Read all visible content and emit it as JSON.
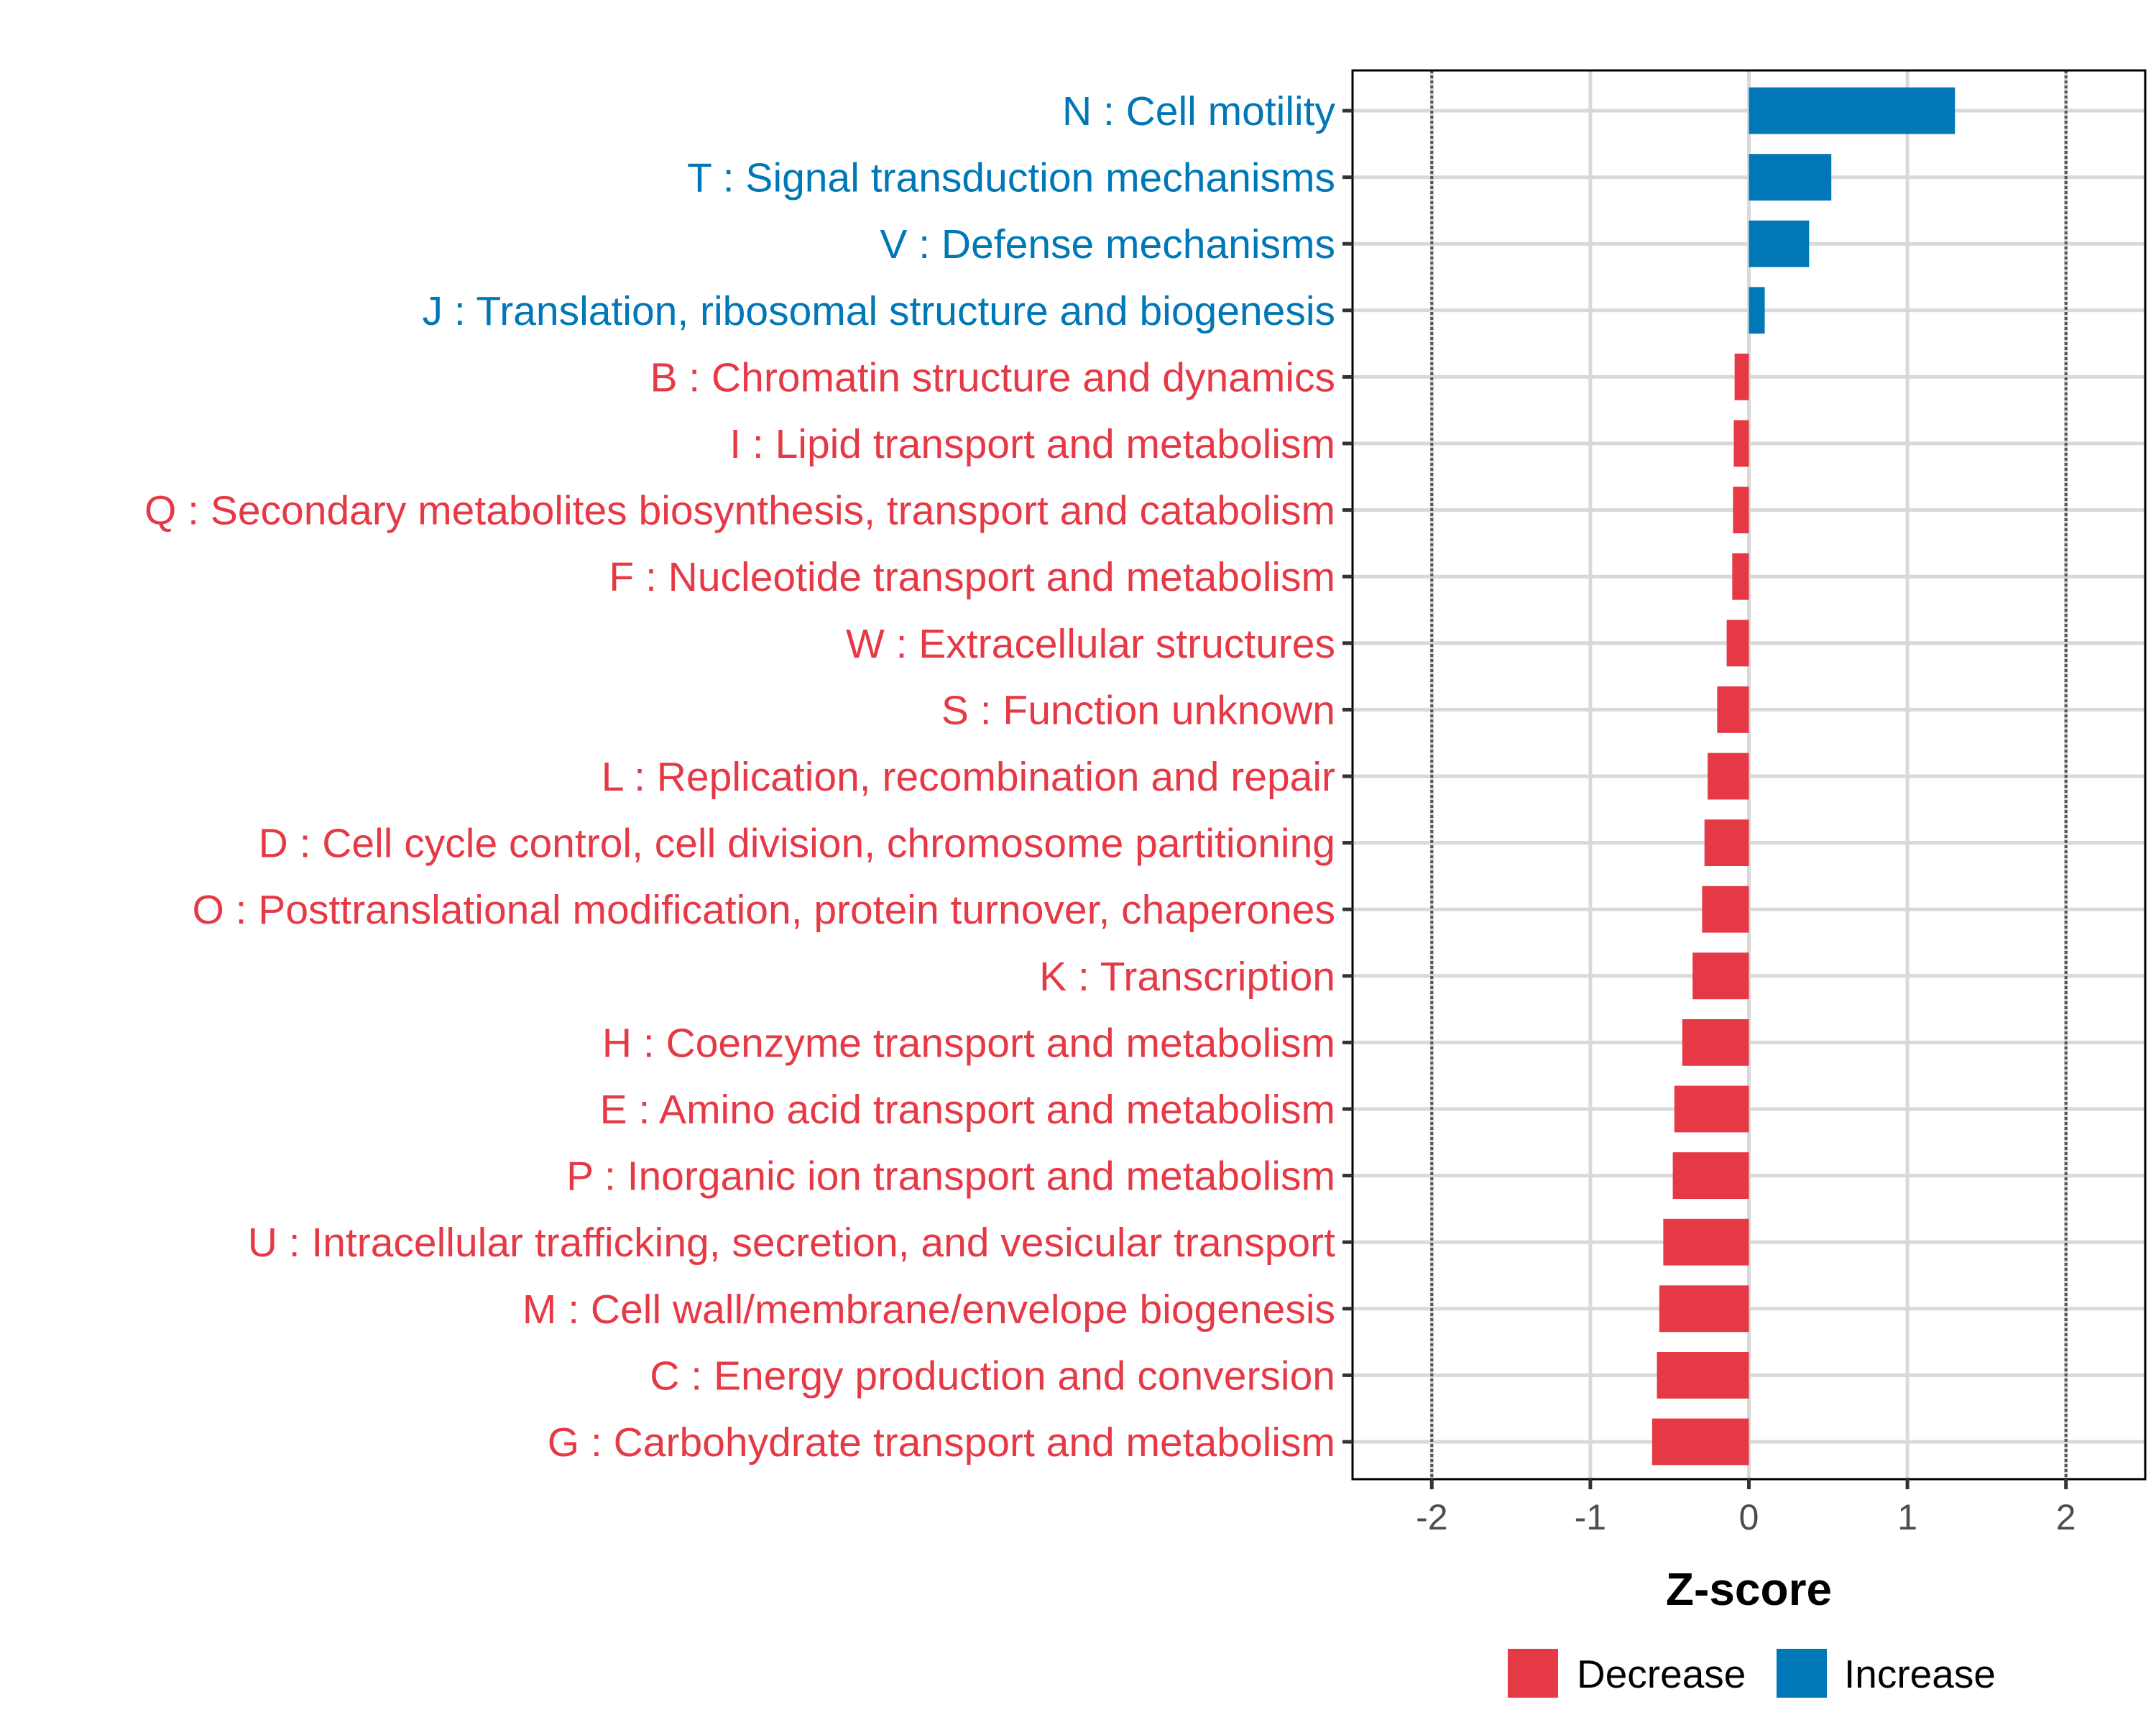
{
  "chart_data": {
    "type": "bar",
    "orientation": "horizontal",
    "title": "",
    "xlabel": "Z-score",
    "ylabel": "",
    "xlim": [
      -2.5,
      2.5
    ],
    "x_ticks": [
      -2,
      -1,
      0,
      1,
      2
    ],
    "x_tick_labels": [
      "-2",
      "-1",
      "0",
      "1",
      "2"
    ],
    "reference_lines": [
      -2,
      2
    ],
    "grid": true,
    "legend_position": "bottom",
    "colors": {
      "Decrease": "#e63946",
      "Increase": "#0077b6"
    },
    "legend": [
      {
        "label": "Decrease",
        "color": "#e63946"
      },
      {
        "label": "Increase",
        "color": "#0077b6"
      }
    ],
    "categories": [
      "N : Cell motility",
      "T : Signal transduction mechanisms",
      "V : Defense mechanisms",
      "J : Translation, ribosomal structure and biogenesis",
      "B : Chromatin structure and dynamics",
      "I : Lipid transport and metabolism",
      "Q : Secondary metabolites biosynthesis, transport and catabolism",
      "F : Nucleotide transport and metabolism",
      "W : Extracellular structures",
      "S : Function unknown",
      "L : Replication, recombination and repair",
      "D : Cell cycle control, cell division, chromosome partitioning",
      "O : Posttranslational modification, protein turnover, chaperones",
      "K : Transcription",
      "H : Coenzyme transport and metabolism",
      "E : Amino acid transport and metabolism",
      "P : Inorganic ion transport and metabolism",
      "U : Intracellular trafficking, secretion, and vesicular transport",
      "M : Cell wall/membrane/envelope biogenesis",
      "C : Energy production and conversion",
      "G : Carbohydrate transport and metabolism"
    ],
    "values": [
      1.3,
      0.52,
      0.38,
      0.1,
      -0.09,
      -0.095,
      -0.1,
      -0.105,
      -0.14,
      -0.2,
      -0.26,
      -0.28,
      -0.295,
      -0.355,
      -0.42,
      -0.47,
      -0.48,
      -0.54,
      -0.565,
      -0.58,
      -0.61
    ],
    "direction": [
      "Increase",
      "Increase",
      "Increase",
      "Increase",
      "Decrease",
      "Decrease",
      "Decrease",
      "Decrease",
      "Decrease",
      "Decrease",
      "Decrease",
      "Decrease",
      "Decrease",
      "Decrease",
      "Decrease",
      "Decrease",
      "Decrease",
      "Decrease",
      "Decrease",
      "Decrease",
      "Decrease"
    ]
  }
}
